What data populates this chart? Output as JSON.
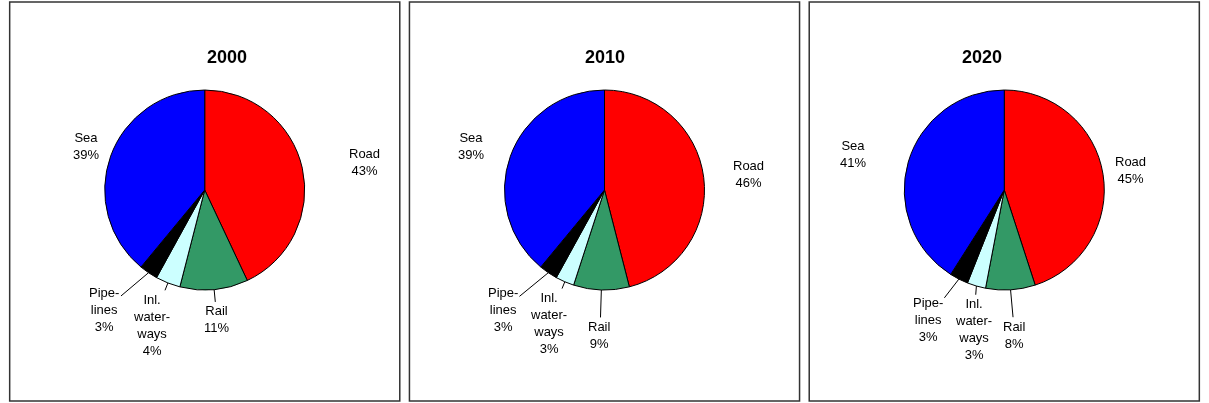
{
  "chart_data": [
    {
      "type": "pie",
      "title": "2000",
      "categories": [
        "Road",
        "Rail",
        "Inl.\nwater-\nways",
        "Pipe-\nlines",
        "Sea"
      ],
      "values": [
        43,
        11,
        4,
        3,
        39
      ],
      "value_labels": [
        "43%",
        "11%",
        "4%",
        "3%",
        "39%"
      ],
      "colors": [
        "#ff0000",
        "#339966",
        "#ccffff",
        "#000000",
        "#0000ff"
      ],
      "legend": false
    },
    {
      "type": "pie",
      "title": "2010",
      "categories": [
        "Road",
        "Rail",
        "Inl.\nwater-\nways",
        "Pipe-\nlines",
        "Sea"
      ],
      "values": [
        46,
        9,
        3,
        3,
        39
      ],
      "value_labels": [
        "46%",
        "9%",
        "3%",
        "3%",
        "39%"
      ],
      "colors": [
        "#ff0000",
        "#339966",
        "#ccffff",
        "#000000",
        "#0000ff"
      ],
      "legend": false
    },
    {
      "type": "pie",
      "title": "2020",
      "categories": [
        "Road",
        "Rail",
        "Inl.\nwater-\nways",
        "Pipe-\nlines",
        "Sea"
      ],
      "values": [
        45,
        8,
        3,
        3,
        41
      ],
      "value_labels": [
        "45%",
        "8%",
        "3%",
        "3%",
        "41%"
      ],
      "colors": [
        "#ff0000",
        "#339966",
        "#ccffff",
        "#000000",
        "#0000ff"
      ],
      "legend": false
    }
  ]
}
